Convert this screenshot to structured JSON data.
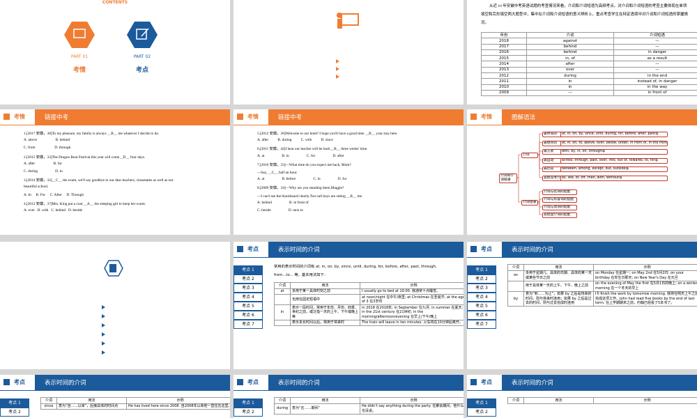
{
  "contents_slide": {
    "heading": "CONTENTS",
    "parts": [
      {
        "label": "PART 01",
        "title": "考情"
      },
      {
        "label": "PART 02",
        "title": "考点"
      }
    ]
  },
  "analysis_slide": {
    "text": "从近 10 年安徽中考英语试题的考查情况来看，介词和介词短语为高频考点。对介词和介词短语的考查主要体现在单项填空和完形填空两大题型中，集中在介词和介词短语的意义辨析上，重点考查学生在特定语境中对介词和介词短语的掌握情况。",
    "table": {
      "columns": [
        "年份",
        "介词",
        "介词短语"
      ],
      "rows": [
        [
          "2018",
          "against",
          "—"
        ],
        [
          "2017",
          "behind",
          "—"
        ],
        [
          "2016",
          "behind",
          "in danger"
        ],
        [
          "2015",
          "in, of",
          "as a result"
        ],
        [
          "2014",
          "after",
          "—"
        ],
        [
          "2013",
          "over",
          "—"
        ],
        [
          "2012",
          "during",
          "in the end"
        ],
        [
          "2011",
          "in",
          "instead of, in danger"
        ],
        [
          "2010",
          "in",
          "in the way"
        ],
        [
          "2009",
          "—",
          "in front of"
        ]
      ]
    }
  },
  "quiz_slides": [
    {
      "section": "考情",
      "title": "链接中考",
      "lines": [
        "1.[2017 安徽，38]To my pleasure, my family is always ＿B＿ me whatever I decide to do.",
        "A. above                    B. behind",
        "C. from                     D. through",
        "2.[2015 安徽，33]The Dragon Boat Festival this year will come＿D＿ four days.",
        "A. after                    B. for",
        "C. during                   D. in",
        "3.[2014 安徽，32]＿C＿ the exam, we'll say goodbye to our dear teachers, classmates as well as our",
        "beautiful school.",
        "A. In     B. For     C. After     D. Through",
        "4.[2013 安徽，37]Mrs. King put a coat ＿A＿ the sleeping girl to keep her warm.",
        "A. over   B. with   C. behind   D. beside"
      ]
    },
    {
      "section": "考情",
      "title": "链接中考",
      "lines": [
        "5.[2012 安徽，36]Welcome to our hotel! I hope you'll have a good time ＿B＿ your stay here.",
        "A. after          B. during          C. with          D. since",
        "6.[2011 安徽，42]I hear our teacher will be back＿B＿ three weeks' time.",
        "A. at                   B. in                   C. for                   D. after",
        "7.[2010 安徽，33]—What time do you expect me back, Mum?",
        "—Say, ＿C＿ half an hour.",
        "A. at                   B. before                   C. in                   D. for",
        "8.[2009 安徽，34]—Why are you standing there,Maggie?",
        "—I can't see the blackboard clearly.Two tall boys are sitting ＿B＿ me.",
        "A. behind                   B. in front of",
        "C. beside                   D. next to"
      ]
    }
  ],
  "diagram_slide": {
    "section": "考情",
    "title": "图解语法",
    "root": "介词和介词短语",
    "branches": [
      {
        "label": "介词",
        "children": [
          {
            "label": "表时间的",
            "text": "at, in, on, by, since, until, during, for, before, after, past等"
          },
          {
            "label": "表地点的",
            "text": "at, in, on, to, above, over, below, under, in front of, in the front of, near, beside, next to, behind等"
          },
          {
            "label": "表方式",
            "text": "with, by, in, on, through等"
          },
          {
            "label": "表运动",
            "text": "across, through, past, over, into, out of, towards, to, for等"
          },
          {
            "label": "表比较",
            "text": "between, among, except, but, outside等"
          },
          {
            "label": "其他常考介词",
            "text": "as, like, of, off, than, with, without等"
          }
        ]
      },
      {
        "label": "介词短语",
        "children": [
          {
            "label": "介词与名词的搭配"
          },
          {
            "label": "介词与形容词的搭配"
          },
          {
            "label": "介词与动词的搭配"
          },
          {
            "label": "其他含介词的搭配"
          }
        ]
      }
    ]
  },
  "point_slides": [
    {
      "section": "考点",
      "title": "表示时间的介词",
      "nav": [
        "考点 1",
        "考点 2",
        "考点 3",
        "考点 4",
        "考点 5",
        "考点 6",
        "考点 7"
      ],
      "intro": "常用的表示时间的介词有 at, in, on, by, since, until, during, for, before, after, past, through, from...to... 等。基本用法如下：",
      "table": {
        "columns": [
          "介词",
          "用法",
          "示例"
        ],
        "rows": [
          [
            "at",
            "多用于某一具体时刻之前",
            "I usually go to bed at 10:00. 我通常十点睡觉。"
          ],
          [
            "",
            "也用在固定短语中",
            "at noon/night 在中午/夜里; at Christmas 在圣诞节; at the age of 3 在3岁时"
          ],
          [
            "in",
            "表示一段时间，常用于年份、月份、四季、世纪之前，或泛指一天的上午、下午或晚上等",
            "in 2018 在2018年; in September 在九月; in summer 在夏天; in the 21st century 在21世纪; in the morning/afternoon/evening 在早上/下午/晚上"
          ],
          [
            "",
            "表示多长时间以后，常用于将来时",
            "The train will leave in ten minutes. 火车将在10分钟后离开。"
          ]
        ]
      }
    },
    {
      "section": "考点",
      "title": "表示时间的介词",
      "nav": [
        "考点 1",
        "考点 2",
        "考点 3",
        "考点 4",
        "考点 5",
        "考点 6",
        "考点 7"
      ],
      "table": {
        "columns": [
          "介词",
          "用法",
          "示例"
        ],
        "rows": [
          [
            "on",
            "多用于星期几、具体的日期、具体的某一天或某些节日之前",
            "on Monday 在星期一; on May 2nd 在5月2日; on your birthday 在你生日那天; on New Year's Day 在元旦"
          ],
          [
            "",
            "用于具体某一天的上午、下午、晚上之前",
            "on the evening of May the first 在5月1日的晚上; on a winter morning 在一个冬天的早上"
          ],
          [
            "by",
            "意为“到……为止”，如果 by 之后是将来的时间，则与将来时连用；如果 by 之后是过去的时间，则与过去完成时连用",
            "I'll finish the work by tomorrow morning. 我将在明天上午之前完成这项工作。John had read five books by the end of last term. 在上学期期末之前，约翰已经看了5本书了。"
          ]
        ]
      }
    },
    {
      "section": "考点",
      "title": "表示时间的介词",
      "nav": [
        "考点 1",
        "考点 2"
      ],
      "table": {
        "columns": [
          "介词",
          "用法",
          "示例"
        ],
        "rows": [
          [
            "since",
            "意为“自……以来”，后接具体的时间点",
            "He has lived here since 2008. 自2008年以来他一直住在这里。"
          ]
        ]
      }
    },
    {
      "section": "考点",
      "title": "表示时间的介词",
      "nav": [
        "考点 1",
        "考点 2"
      ],
      "table": {
        "columns": [
          "介词",
          "用法",
          "示例"
        ],
        "rows": [
          [
            "during",
            "意为“在……期间”",
            "He didn't say anything during the party. 在聚会期间，他什么也没说。"
          ]
        ]
      }
    },
    {
      "section": "考点",
      "title": "表示时间的介词",
      "nav": [
        "考点 1",
        "考点 2"
      ],
      "table": {
        "columns": [
          "介词",
          "用法",
          "示例"
        ],
        "rows": []
      }
    }
  ]
}
